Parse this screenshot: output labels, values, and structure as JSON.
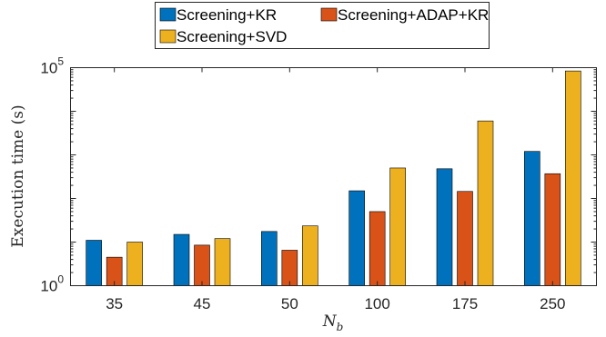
{
  "chart_data": {
    "type": "bar",
    "title": "",
    "xlabel": "N_b",
    "ylabel": "Execution time (s)",
    "yscale": "log",
    "ylim": [
      1,
      100000
    ],
    "yticks": [
      {
        "value": 1,
        "base": "10",
        "exp": "0"
      },
      {
        "value": 100000,
        "base": "10",
        "exp": "5"
      }
    ],
    "categories": [
      "35",
      "45",
      "50",
      "100",
      "175",
      "250"
    ],
    "series": [
      {
        "name": "Screening+KR",
        "color": "#0072BD",
        "values": [
          11,
          15,
          17.5,
          150,
          480,
          1200
        ]
      },
      {
        "name": "Screening+ADAP+KR",
        "color": "#D95319",
        "values": [
          4.5,
          8.5,
          6.5,
          50,
          145,
          370
        ]
      },
      {
        "name": "Screening+SVD",
        "color": "#EDB120",
        "values": [
          10,
          12,
          23.5,
          500,
          6000,
          84000
        ]
      }
    ],
    "legend": "top-center",
    "grid": false
  }
}
